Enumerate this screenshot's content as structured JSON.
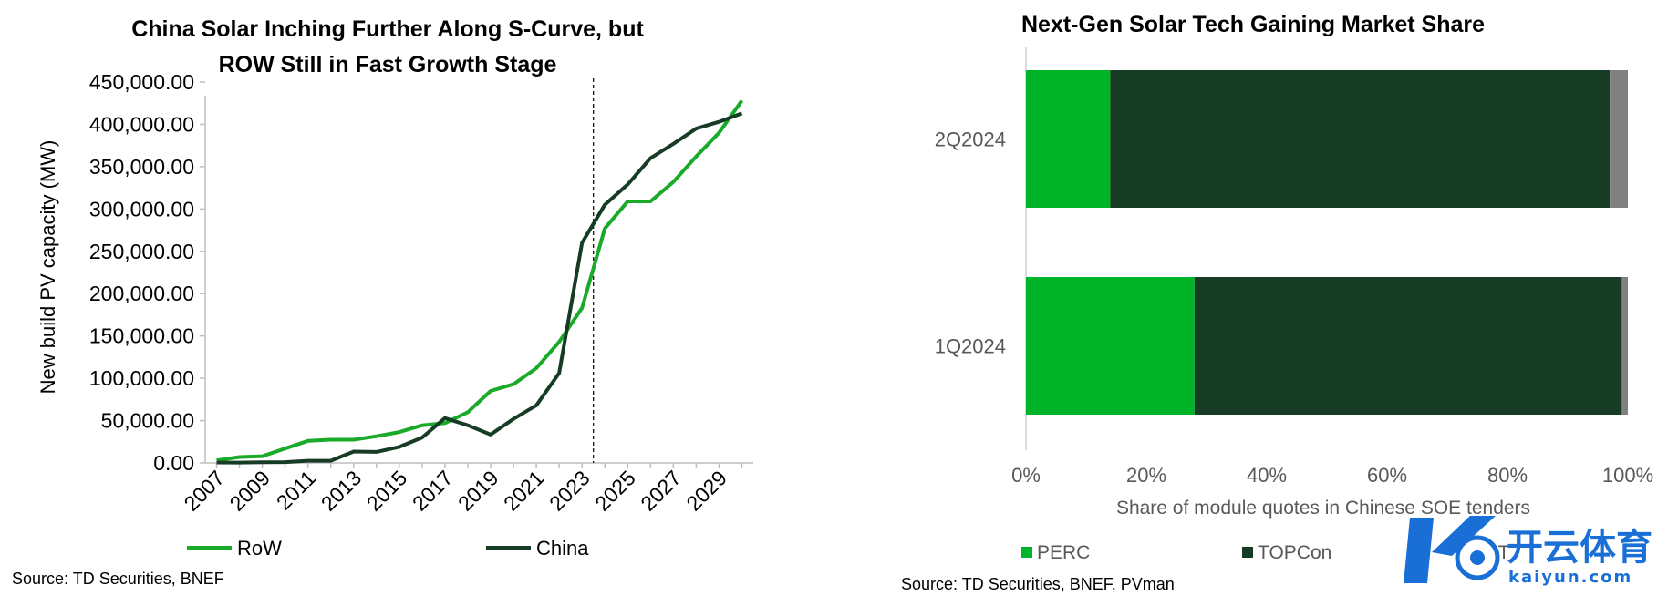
{
  "charts": {
    "left": {
      "title_line1": "China Solar Inching Further Along S-Curve, but",
      "title_line2": "ROW Still in Fast Growth Stage",
      "source": "Source: TD Securities, BNEF",
      "legend": [
        "RoW",
        "China"
      ]
    },
    "right": {
      "title": "Next-Gen Solar Tech Gaining Market Share",
      "source": "Source: TD Securities, BNEF, PVman",
      "legend": [
        "PERC",
        "TOPCon",
        "HJT"
      ]
    }
  },
  "watermark": {
    "brand_text": "开云体育",
    "domain": "kaiyun.com"
  },
  "chart_data": [
    {
      "type": "line",
      "title": "China Solar Inching Further Along S-Curve, but ROW Still in Fast Growth Stage",
      "xlabel": "",
      "ylabel": "New build PV capacity (MW)",
      "x": [
        2007,
        2008,
        2009,
        2010,
        2011,
        2012,
        2013,
        2014,
        2015,
        2016,
        2017,
        2018,
        2019,
        2020,
        2021,
        2022,
        2023,
        2024,
        2025,
        2026,
        2027,
        2028,
        2029,
        2030
      ],
      "x_tick_labels": [
        "2007",
        "2009",
        "2011",
        "2013",
        "2015",
        "2017",
        "2019",
        "2021",
        "2023",
        "2025",
        "2027",
        "2029"
      ],
      "ylim": [
        0,
        450000
      ],
      "y_tick_labels": [
        "0.00",
        "50,000.00",
        "100,000.00",
        "150,000.00",
        "200,000.00",
        "250,000.00",
        "300,000.00",
        "350,000.00",
        "400,000.00",
        "450,000.00"
      ],
      "vline_x": 2023.5,
      "series": [
        {
          "name": "RoW",
          "color": "#1aaa2a",
          "values": [
            3000,
            7000,
            8000,
            17000,
            26000,
            27500,
            27500,
            31500,
            36500,
            44500,
            47000,
            60000,
            85000,
            93000,
            112000,
            143000,
            183000,
            277000,
            309000,
            309000,
            332000,
            362000,
            390000,
            428000
          ]
        },
        {
          "name": "China",
          "color": "#173c25",
          "values": [
            500,
            400,
            700,
            1000,
            2600,
            2600,
            13500,
            13000,
            19000,
            30000,
            53000,
            44500,
            33500,
            52000,
            68000,
            106000,
            260000,
            305000,
            329000,
            360000,
            377000,
            395000,
            403000,
            413000
          ]
        }
      ],
      "legend_position": "bottom",
      "grid": false
    },
    {
      "type": "bar",
      "orientation": "horizontal",
      "stacked": true,
      "title": "Next-Gen Solar Tech Gaining Market Share",
      "xlabel": "Share of module quotes in Chinese SOE tenders",
      "categories": [
        "2Q2024",
        "1Q2024"
      ],
      "xlim": [
        0,
        100
      ],
      "x_tick_labels": [
        "0%",
        "20%",
        "40%",
        "60%",
        "80%",
        "100%"
      ],
      "series": [
        {
          "name": "PERC",
          "color": "#00b42a",
          "values": [
            14,
            28
          ]
        },
        {
          "name": "TOPCon",
          "color": "#173c25",
          "values": [
            83,
            71
          ]
        },
        {
          "name": "HJT",
          "color": "#808080",
          "values": [
            3,
            1
          ]
        }
      ],
      "legend_position": "bottom",
      "grid": false
    }
  ]
}
